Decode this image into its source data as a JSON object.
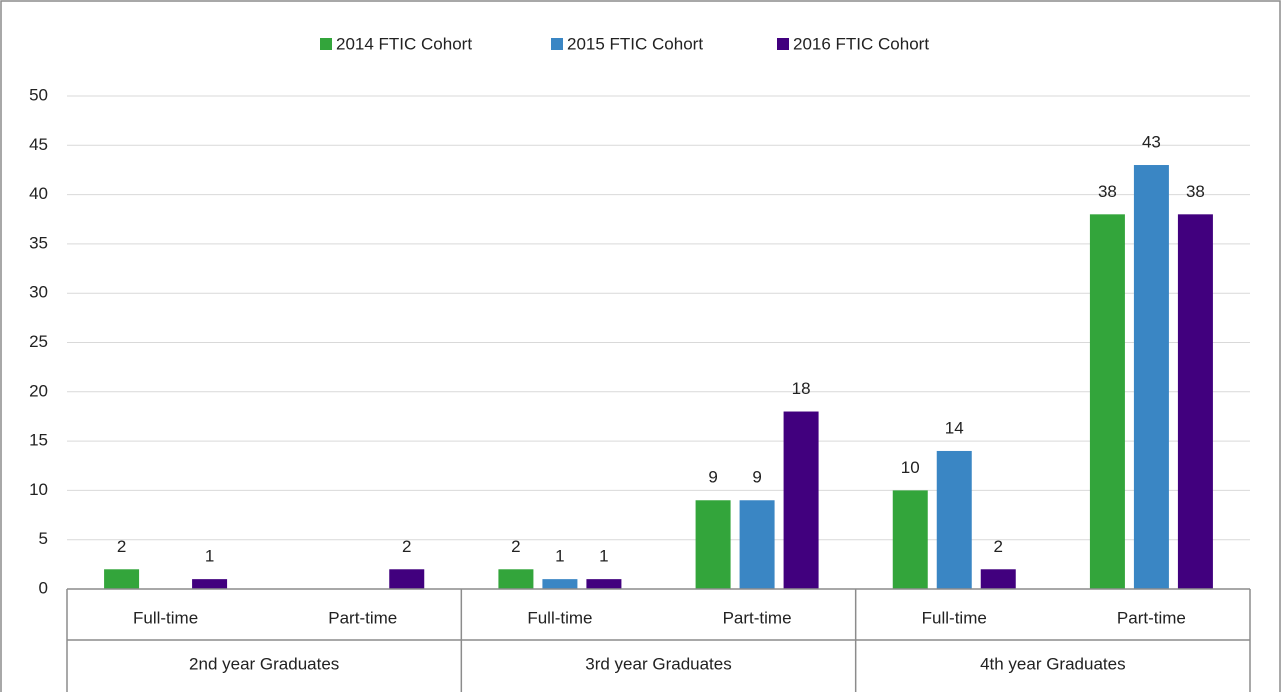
{
  "chart_data": {
    "type": "bar",
    "categories": [
      "Full-time",
      "Part-time",
      "Full-time",
      "Part-time",
      "Full-time",
      "Part-time"
    ],
    "category_groups": [
      "2nd year Graduates",
      "3rd year Graduates",
      "4th year Graduates"
    ],
    "series": [
      {
        "name": "2014 FTIC Cohort",
        "color": "#33a53b",
        "values": [
          2,
          null,
          2,
          9,
          10,
          38
        ]
      },
      {
        "name": "2015 FTIC Cohort",
        "color": "#3a86c4",
        "values": [
          null,
          null,
          1,
          9,
          14,
          43
        ]
      },
      {
        "name": "2016 FTIC Cohort",
        "color": "#41007e",
        "values": [
          1,
          2,
          1,
          18,
          2,
          38
        ]
      }
    ],
    "ylim": [
      0,
      50
    ],
    "yticks": [
      0,
      5,
      10,
      15,
      20,
      25,
      30,
      35,
      40,
      45,
      50
    ],
    "grid": true,
    "legend": "top"
  }
}
